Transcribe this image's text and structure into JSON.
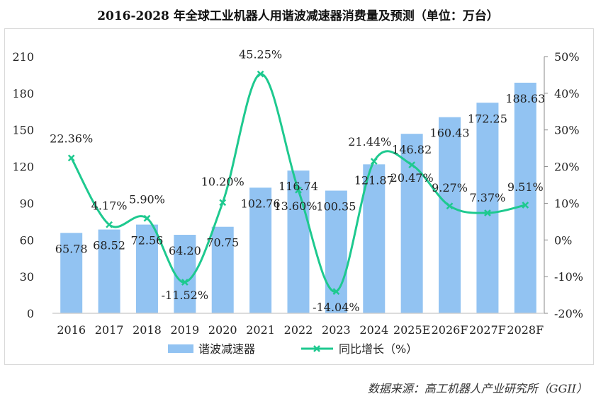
{
  "title": "2016-2028 年全球工业机器人用谐波减速器消费量及预测（单位：万台）",
  "source": "数据来源：高工机器人产业研究所（GGII）",
  "chart_data": {
    "type": "bar+line",
    "title": "2016-2028 年全球工业机器人用谐波减速器消费量及预测（单位：万台）",
    "categories": [
      "2016",
      "2017",
      "2018",
      "2019",
      "2020",
      "2021",
      "2022",
      "2023",
      "2024",
      "2025E",
      "2026F",
      "2027F",
      "2028F"
    ],
    "series": [
      {
        "name": "谐波减速器",
        "type": "bar",
        "axis": "left",
        "color": "#92c3f2",
        "values": [
          65.78,
          68.52,
          72.56,
          64.2,
          70.75,
          102.76,
          116.74,
          100.35,
          121.87,
          146.82,
          160.43,
          172.25,
          188.63
        ],
        "labels": [
          "65.78",
          "68.52",
          "72.56",
          "64.20",
          "70.75",
          "102.76",
          "116.74",
          "100.35",
          "121.87",
          "146.82",
          "160.43",
          "172.25",
          "188.63"
        ]
      },
      {
        "name": "同比增长（%）",
        "type": "line",
        "axis": "right",
        "color": "#1ec98f",
        "marker": "x",
        "values": [
          22.36,
          4.17,
          5.9,
          -11.52,
          10.2,
          45.25,
          13.6,
          -14.04,
          21.44,
          20.47,
          9.27,
          7.37,
          9.51
        ],
        "labels": [
          "22.36%",
          "4.17%",
          "5.90%",
          "-11.52%",
          "10.20%",
          "45.25%",
          "13.60%",
          "-14.04%",
          "21.44%",
          "20.47%",
          "9.27%",
          "7.37%",
          "9.51%"
        ]
      }
    ],
    "left_axis": {
      "ylim": [
        0,
        210
      ],
      "ticks": [
        "0",
        "30",
        "60",
        "90",
        "120",
        "150",
        "180",
        "210"
      ]
    },
    "right_axis": {
      "ylim": [
        -20,
        50
      ],
      "ticks": [
        "-20%",
        "-10%",
        "0%",
        "10%",
        "20%",
        "30%",
        "40%",
        "50%"
      ]
    },
    "grid": false,
    "legend": "bottom"
  }
}
